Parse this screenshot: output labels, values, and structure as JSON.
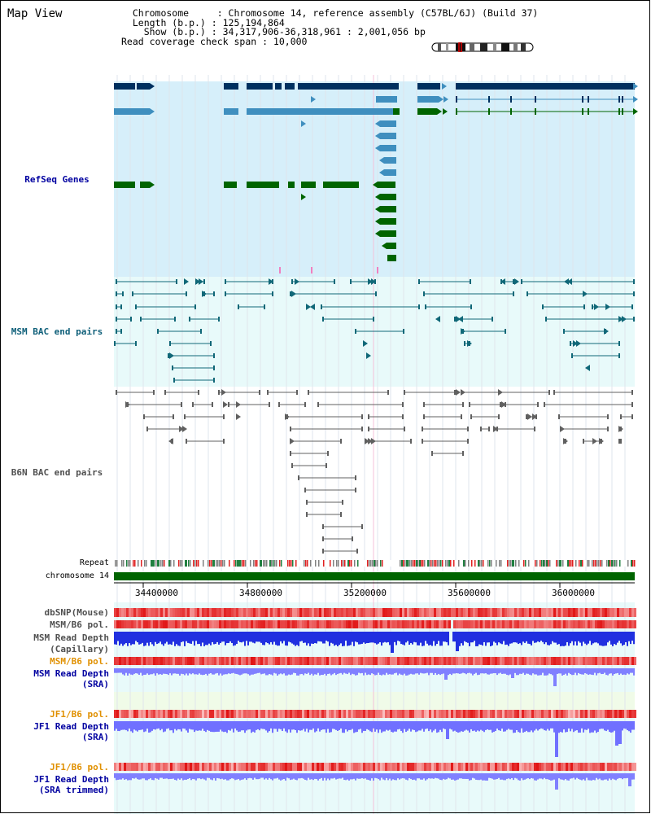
{
  "header": {
    "title": "Map View",
    "info_lines": [
      "  Chromosome     : Chromosome 14, reference assembly (C57BL/6J) (Build 37)",
      "  Length (b.p.) : 125,194,864",
      "    Show (b.p.) : 34,317,906-36,318,961 : 2,001,056 bp",
      "Read coverage check span : 10,000"
    ]
  },
  "tracks": {
    "refseq": "RefSeq Genes",
    "msm_bac": "MSM BAC end pairs",
    "b6n_bac": "B6N BAC end pairs",
    "repeat": "Repeat",
    "chromosome": "chromosome 14",
    "dbsnp": "dbSNP(Mouse)",
    "msm_b6_pol": "MSM/B6 pol.",
    "msm_depth_cap_1": "MSM Read Depth",
    "msm_depth_cap_2": "(Capillary)",
    "msm_b6_pol_2": "MSM/B6 pol.",
    "msm_depth_sra_1": "MSM Read Depth",
    "msm_depth_sra_2": "(SRA)",
    "jf1_b6_pol": "JF1/B6 pol.",
    "jf1_depth_sra_1": "JF1 Read Depth",
    "jf1_depth_sra_2": "(SRA)",
    "jf1_b6_pol_2": "JF1/B6 pol.",
    "jf1_depth_trim_1": "JF1 Read Depth",
    "jf1_depth_trim_2": "(SRA trimmed)"
  },
  "axis": {
    "ticks": [
      "34400000",
      "34800000",
      "35200000",
      "35600000",
      "36000000"
    ]
  },
  "colors": {
    "navy": "#00305f",
    "steel": "#3f8fbf",
    "green": "#006400",
    "teal": "#106878",
    "gray": "#606060",
    "label_blue": "#0000a0",
    "label_teal": "#10607a",
    "label_gray": "#505050",
    "label_orange": "#e09000",
    "panel_blue": "#d6effa",
    "panel_cyan": "#e8fafa"
  }
}
